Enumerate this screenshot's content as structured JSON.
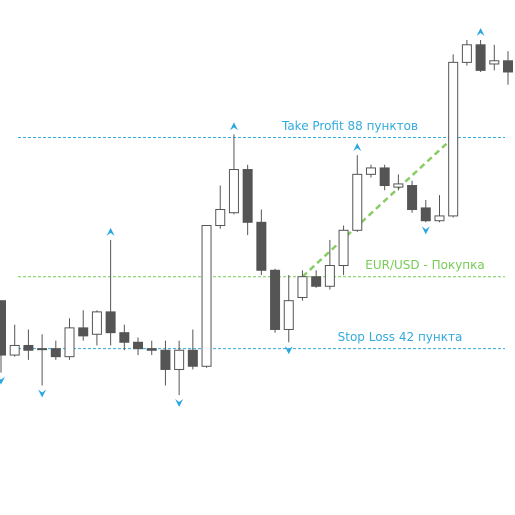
{
  "chart_data": {
    "type": "candlestick",
    "ylim": [
      0,
      322
    ],
    "up_color": "#ffffff",
    "down_color": "#555555",
    "edge_color": "#555555",
    "open": [
      134,
      100,
      106,
      104,
      104,
      99,
      117,
      113,
      127,
      114,
      108,
      104,
      103,
      91,
      103,
      93,
      181,
      189,
      216,
      183,
      153,
      116,
      136,
      149,
      143,
      156,
      178,
      213,
      217,
      205,
      206,
      192,
      184,
      187,
      283,
      294,
      282,
      284
    ],
    "high": [
      134,
      119,
      116,
      113,
      109,
      123,
      128,
      128,
      172,
      119,
      111,
      109,
      109,
      109,
      116,
      181,
      206,
      238,
      219,
      191,
      154,
      150,
      153,
      153,
      172,
      181,
      225,
      219,
      219,
      213,
      209,
      197,
      200,
      288,
      297,
      297,
      294,
      290
    ],
    "low": [
      89,
      99,
      97,
      81,
      97,
      97,
      109,
      106,
      106,
      103,
      100,
      100,
      81,
      75,
      91,
      92,
      179,
      188,
      175,
      150,
      114,
      108,
      134,
      142,
      141,
      150,
      177,
      211,
      203,
      203,
      189,
      183,
      183,
      186,
      281,
      277,
      278,
      269
    ],
    "close": [
      100,
      106,
      103,
      104,
      99,
      117,
      112,
      127,
      114,
      108,
      104,
      103,
      91,
      103,
      93,
      181,
      191,
      216,
      183,
      153,
      116,
      134,
      149,
      143,
      156,
      178,
      213,
      217,
      206,
      207,
      191,
      184,
      187,
      283,
      294,
      278,
      284,
      277
    ],
    "fractals_up": [
      8,
      17,
      26,
      35
    ],
    "fractals_down": [
      0,
      3,
      13,
      21,
      31
    ],
    "fractal_color": "#2aa6e0",
    "levels": [
      {
        "text": "Take Profit 88 пунктов",
        "value": 236,
        "color": "#33aadd"
      },
      {
        "text": "EUR/USD - Покупка",
        "value": 149,
        "color": "#77cc55"
      },
      {
        "text": "Stop Loss 42 пункта",
        "value": 104,
        "color": "#33aadd"
      }
    ],
    "trade": {
      "from_index": 22,
      "to_index": 33,
      "color": "#88cc66"
    }
  }
}
